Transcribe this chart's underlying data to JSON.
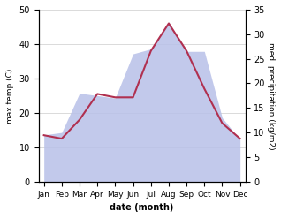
{
  "months": [
    "Jan",
    "Feb",
    "Mar",
    "Apr",
    "May",
    "Jun",
    "Jul",
    "Aug",
    "Sep",
    "Oct",
    "Nov",
    "Dec"
  ],
  "max_temp": [
    13.5,
    12.5,
    18.0,
    25.5,
    24.5,
    24.5,
    38.0,
    46.0,
    38.0,
    27.0,
    17.0,
    12.5
  ],
  "precipitation": [
    9.5,
    10.0,
    18.0,
    17.5,
    17.0,
    26.0,
    27.0,
    32.5,
    26.5,
    26.5,
    13.0,
    8.5
  ],
  "temp_ylim": [
    0,
    50
  ],
  "precip_ylim": [
    0,
    35
  ],
  "temp_color": "#b03050",
  "precip_fill_color": "#b8c0e8",
  "background_color": "#ffffff",
  "ylabel_left": "max temp (C)",
  "ylabel_right": "med. precipitation (kg/m2)",
  "xlabel": "date (month)"
}
